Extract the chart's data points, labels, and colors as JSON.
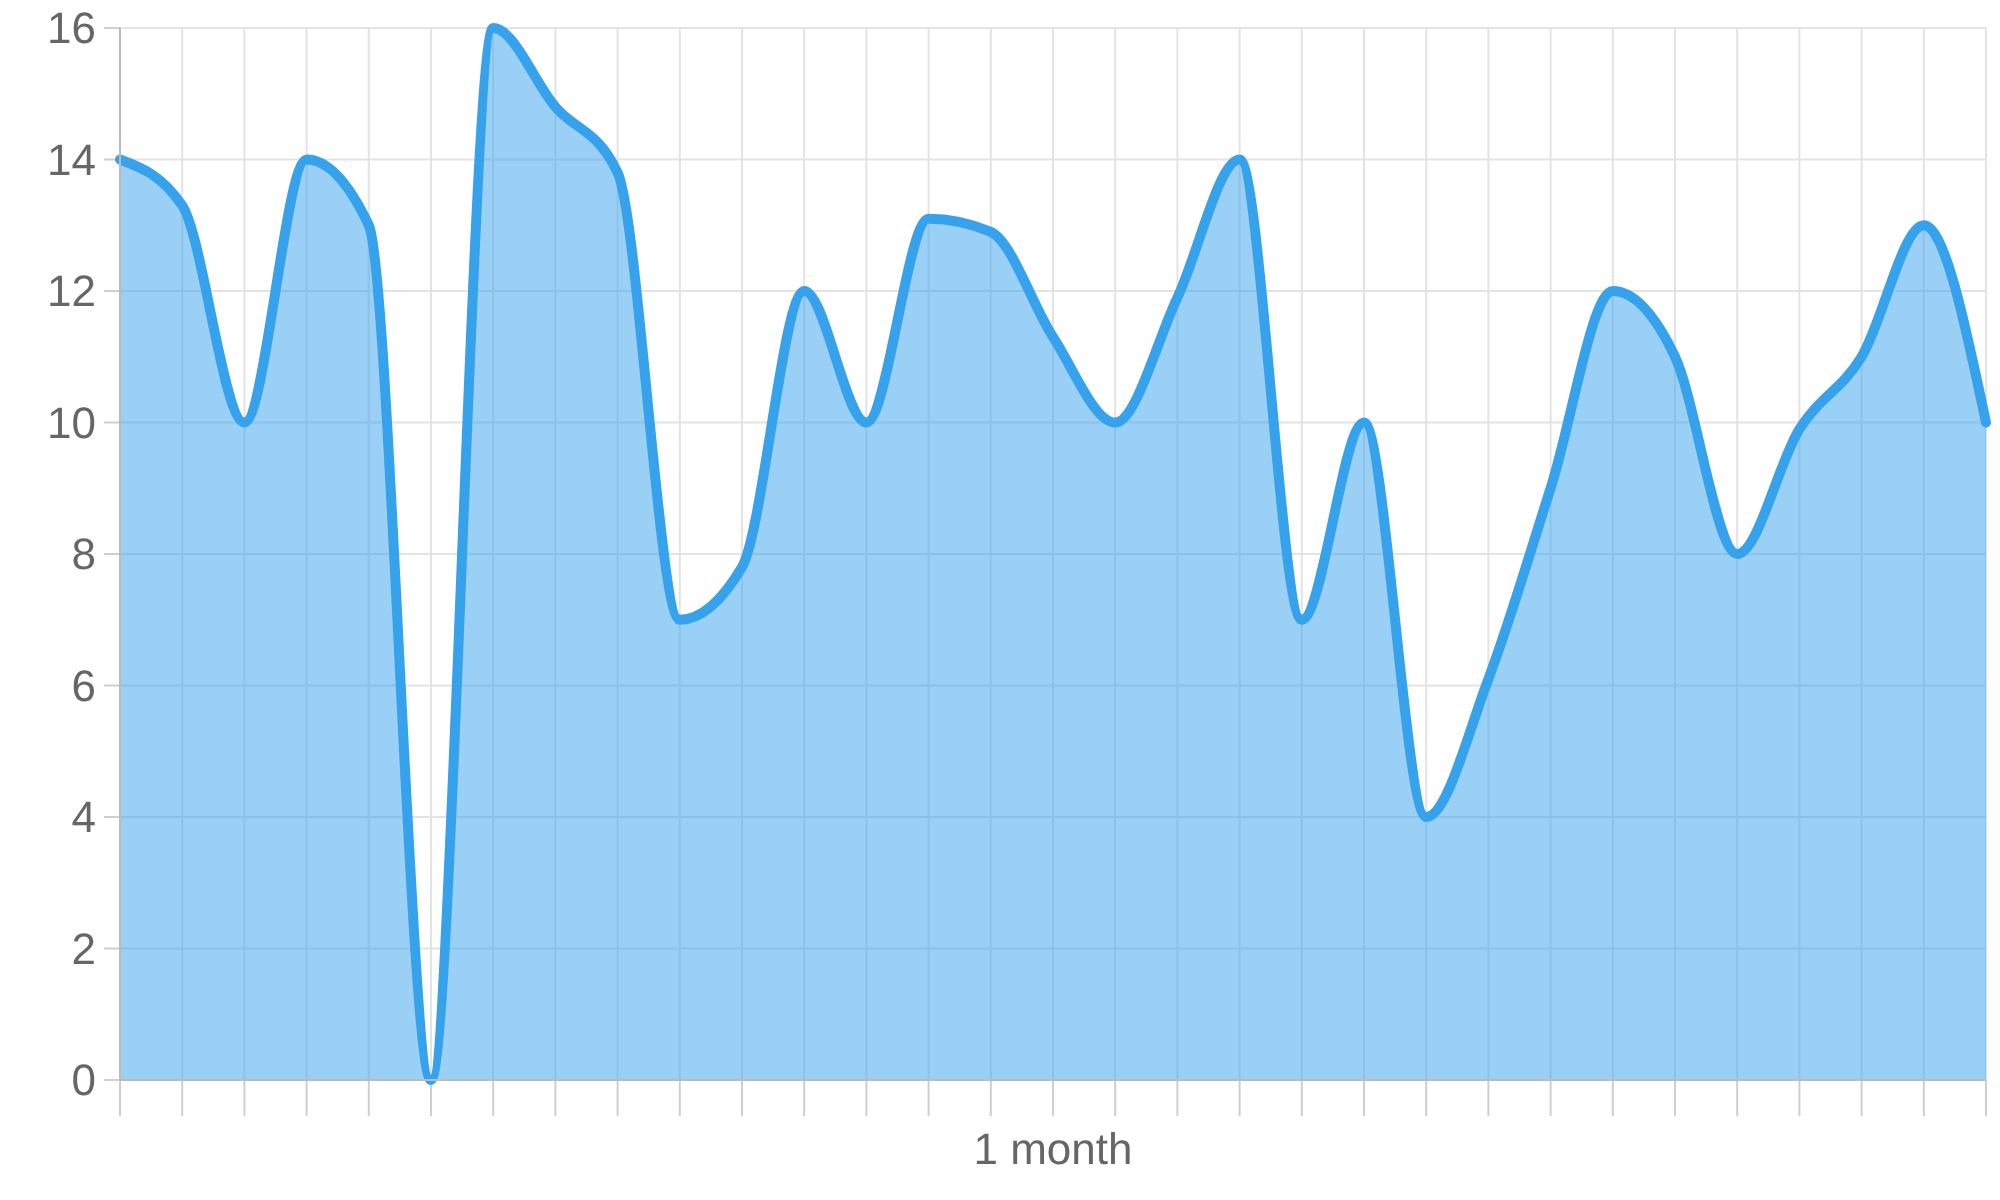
{
  "chart_data": {
    "type": "area",
    "xlabel": "1 month",
    "categories": [
      null,
      null,
      null,
      null,
      null,
      null,
      null,
      null,
      null,
      null,
      null,
      null,
      null,
      null,
      null,
      null,
      null,
      null,
      null,
      null,
      null,
      null,
      null,
      null,
      null,
      null,
      null,
      null,
      null,
      null,
      null
    ],
    "series": [
      {
        "color": "#36a2eb",
        "values": [
          14,
          13.3,
          10,
          14,
          13,
          0,
          16,
          14.8,
          13.8,
          7,
          7.8,
          12,
          10,
          13.1,
          12.9,
          11.3,
          10,
          11.9,
          14,
          7,
          10,
          4,
          6.1,
          9,
          12,
          11,
          8,
          9.9,
          11,
          13,
          10
        ]
      }
    ],
    "ylim": [
      0,
      16
    ],
    "yticks": [
      0,
      2,
      4,
      6,
      8,
      10,
      12,
      14,
      16
    ],
    "grid": true
  }
}
